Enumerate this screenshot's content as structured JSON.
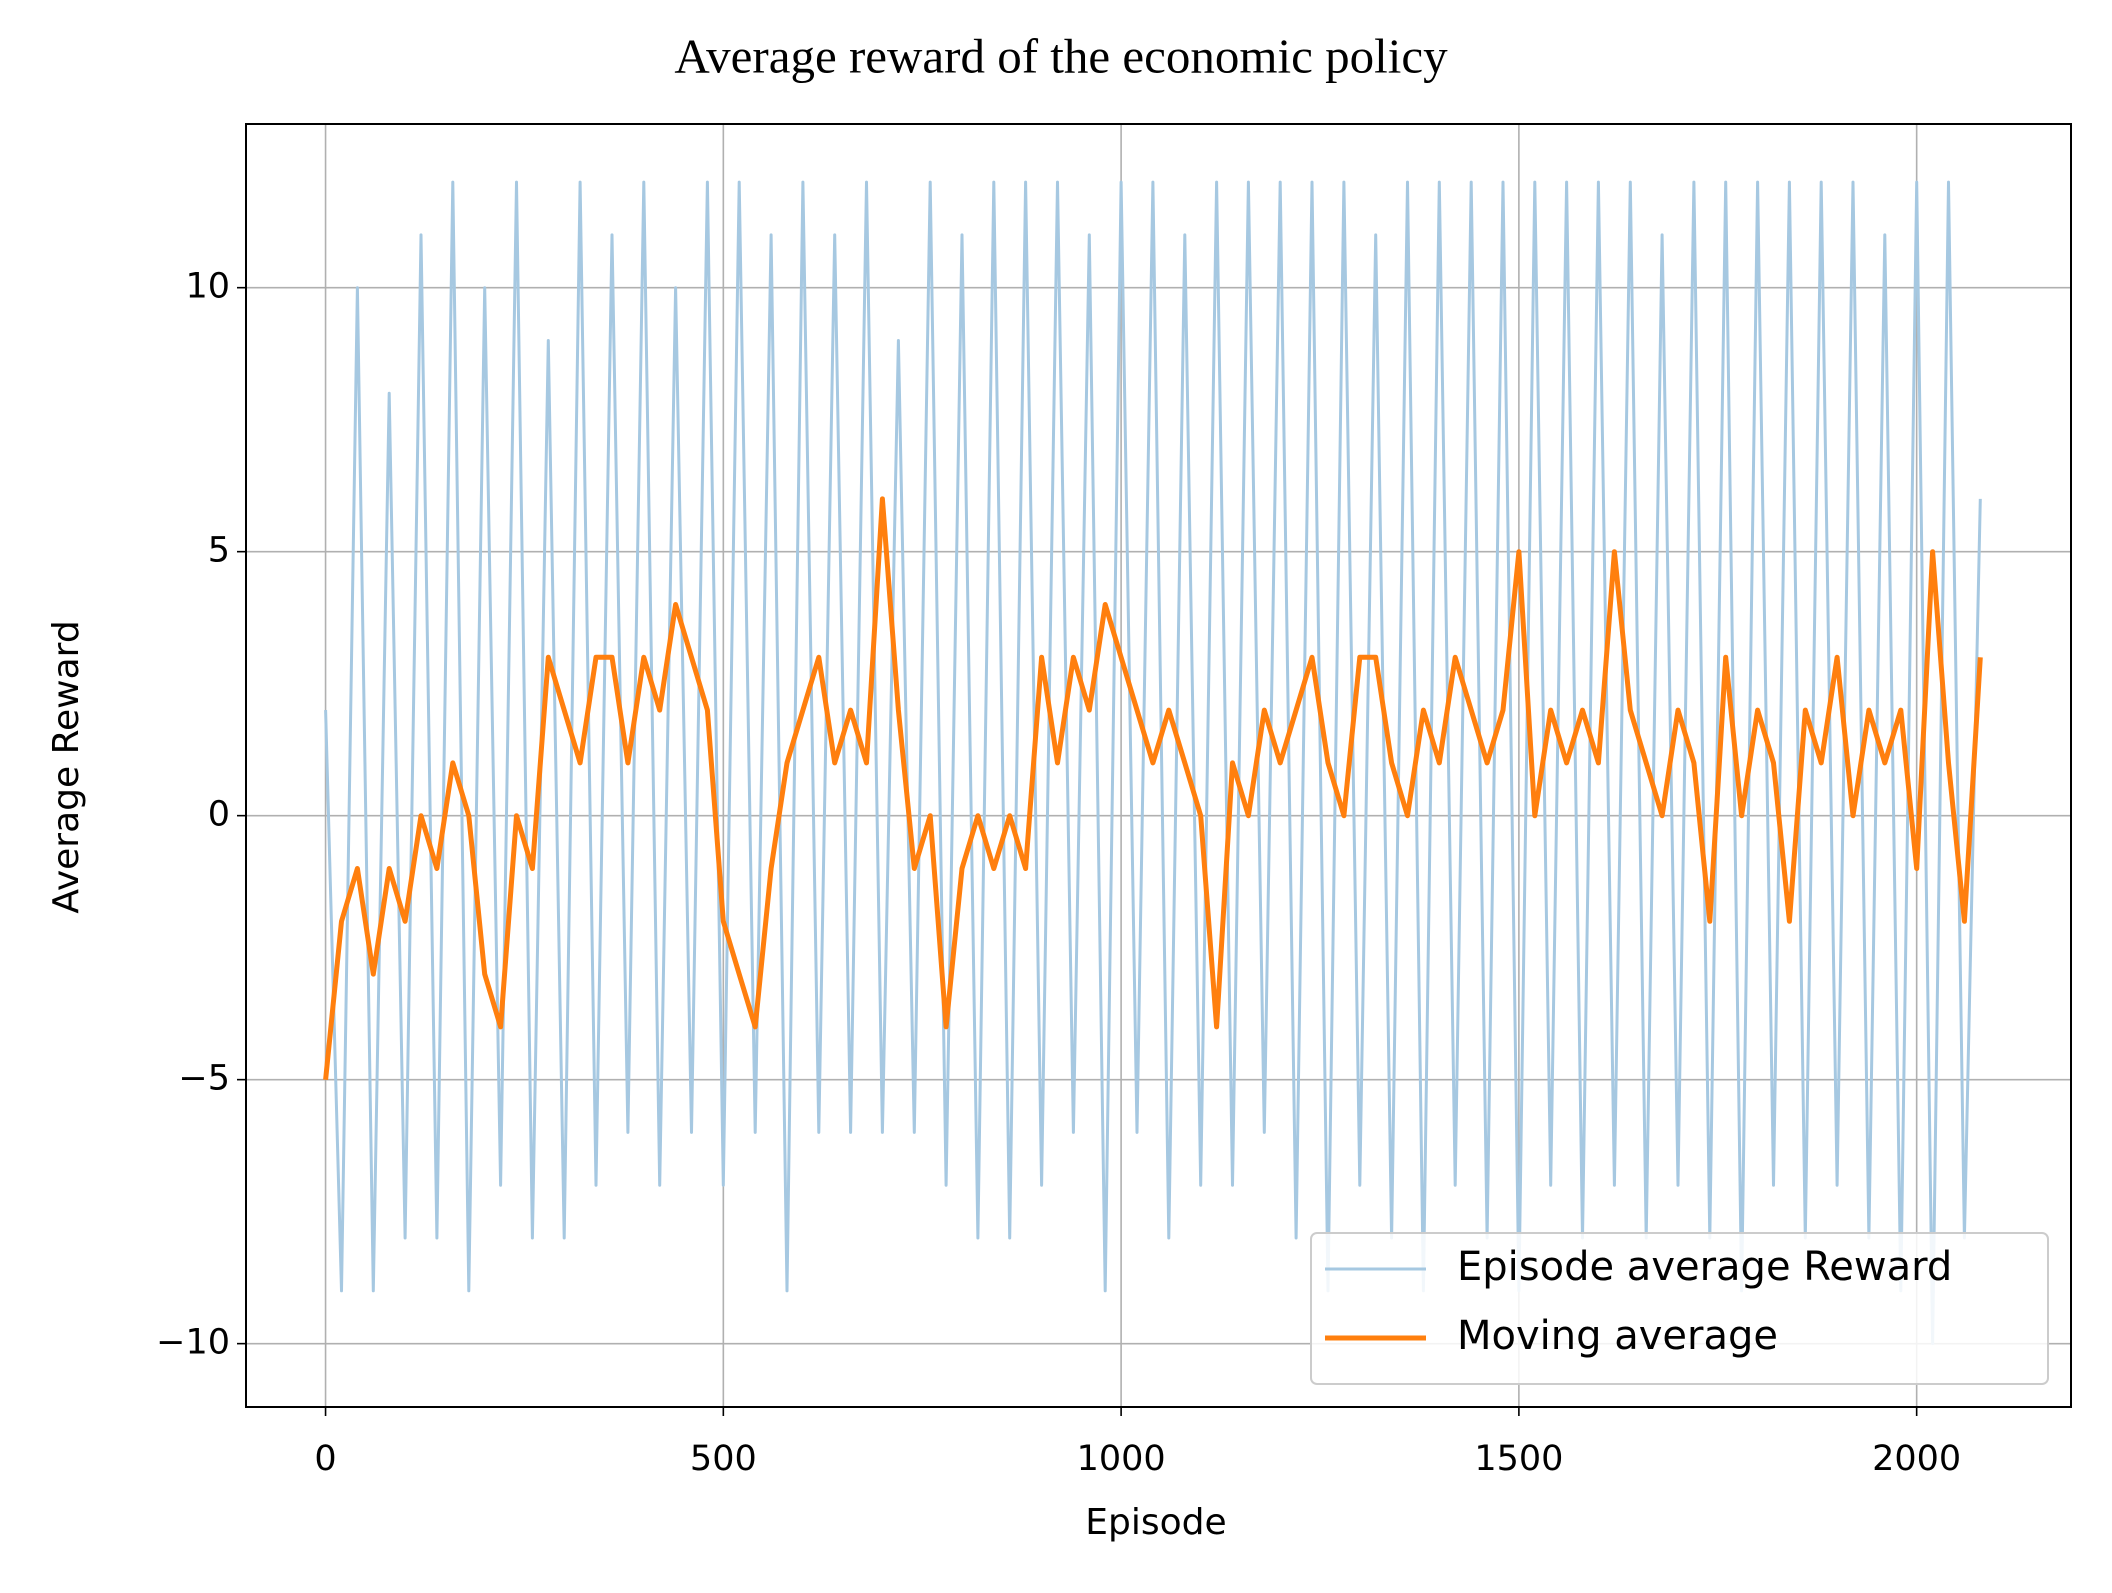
{
  "chart_data": {
    "type": "line",
    "title": "Average reward of the economic policy",
    "x_label": "Episode",
    "y_label": "Average Reward",
    "x": [
      0,
      20,
      40,
      60,
      80,
      100,
      120,
      140,
      160,
      180,
      200,
      220,
      240,
      260,
      280,
      300,
      320,
      340,
      360,
      380,
      400,
      420,
      440,
      460,
      480,
      500,
      520,
      540,
      560,
      580,
      600,
      620,
      640,
      660,
      680,
      700,
      720,
      740,
      760,
      780,
      800,
      820,
      840,
      860,
      880,
      900,
      920,
      940,
      960,
      980,
      1000,
      1020,
      1040,
      1060,
      1080,
      1100,
      1120,
      1140,
      1160,
      1180,
      1200,
      1220,
      1240,
      1260,
      1280,
      1300,
      1320,
      1340,
      1360,
      1380,
      1400,
      1420,
      1440,
      1460,
      1480,
      1500,
      1520,
      1540,
      1560,
      1580,
      1600,
      1620,
      1640,
      1660,
      1680,
      1700,
      1720,
      1740,
      1760,
      1780,
      1800,
      1820,
      1840,
      1860,
      1880,
      1900,
      1920,
      1940,
      1960,
      1980,
      2000,
      2020,
      2040,
      2060,
      2080
    ],
    "series": [
      {
        "name": "Episode average Reward",
        "color": "#a6c8e1",
        "width": 3,
        "values": [
          2,
          -9,
          10,
          -9,
          8,
          -8,
          11,
          -8,
          12,
          -9,
          10,
          -7,
          12,
          -8,
          9,
          -8,
          12,
          -7,
          11,
          -6,
          12,
          -7,
          10,
          -6,
          12,
          -7,
          12,
          -6,
          11,
          -9,
          12,
          -6,
          11,
          -6,
          12,
          -6,
          9,
          -6,
          12,
          -7,
          11,
          -8,
          12,
          -8,
          12,
          -7,
          12,
          -6,
          11,
          -9,
          12,
          -6,
          12,
          -8,
          11,
          -7,
          12,
          -7,
          12,
          -6,
          12,
          -8,
          12,
          -9,
          12,
          -7,
          11,
          -8,
          12,
          -9,
          12,
          -7,
          12,
          -8,
          12,
          -9,
          12,
          -7,
          12,
          -8,
          12,
          -7,
          12,
          -8,
          11,
          -7,
          12,
          -8,
          12,
          -9,
          12,
          -7,
          12,
          -8,
          12,
          -7,
          12,
          -8,
          11,
          -9,
          12,
          -10,
          12,
          -8,
          6
        ]
      },
      {
        "name": "Moving average",
        "color": "#ff7f0e",
        "width": 5,
        "values": [
          -5,
          -2,
          -1,
          -3,
          -1,
          -2,
          0,
          -1,
          1,
          0,
          -3,
          -4,
          0,
          -1,
          3,
          2,
          1,
          3,
          3,
          1,
          3,
          2,
          4,
          3,
          2,
          -2,
          -3,
          -4,
          -1,
          1,
          2,
          3,
          1,
          2,
          1,
          6,
          2,
          -1,
          0,
          -4,
          -1,
          0,
          -1,
          0,
          -1,
          3,
          1,
          3,
          2,
          4,
          3,
          2,
          1,
          2,
          1,
          0,
          -4,
          1,
          0,
          2,
          1,
          2,
          3,
          1,
          0,
          3,
          3,
          1,
          0,
          2,
          1,
          3,
          2,
          1,
          2,
          5,
          0,
          2,
          1,
          2,
          1,
          5,
          2,
          1,
          0,
          2,
          1,
          -2,
          3,
          0,
          2,
          1,
          -2,
          2,
          1,
          3,
          0,
          2,
          1,
          2,
          -1,
          5,
          1,
          -2,
          3
        ]
      }
    ],
    "xlim": [
      -100,
      2194
    ],
    "ylim": [
      -11.2,
      13.1
    ],
    "xticks": [
      0,
      500,
      1000,
      1500,
      2000
    ],
    "yticks": [
      {
        "value": -10,
        "label": "−10"
      },
      {
        "value": -5,
        "label": "−5"
      },
      0,
      5,
      10
    ],
    "grid": true,
    "legend": "lower right"
  }
}
